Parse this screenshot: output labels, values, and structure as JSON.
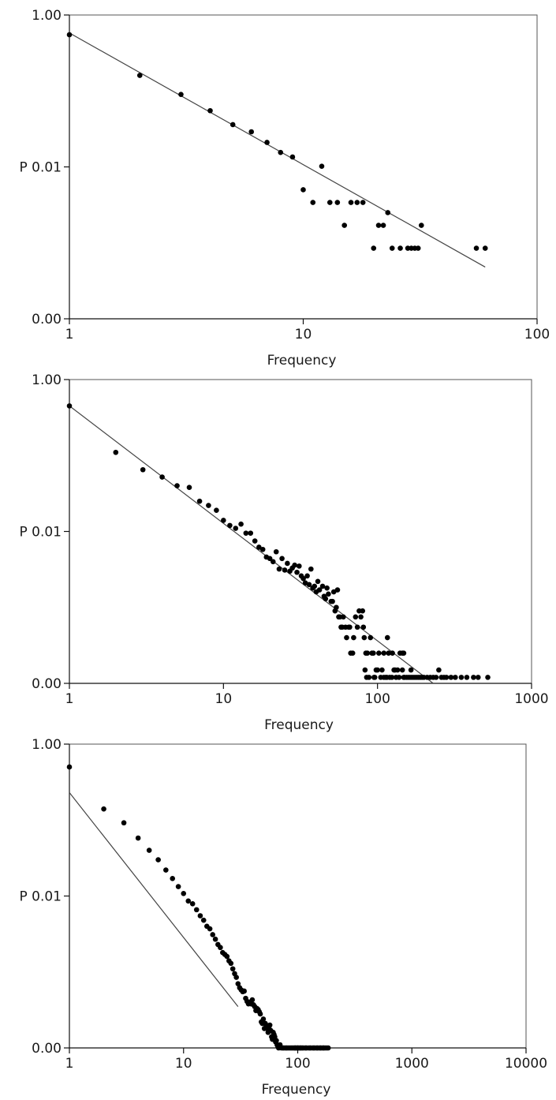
{
  "chart_data": [
    {
      "type": "scatter",
      "scale": {
        "x": "log",
        "y": "log"
      },
      "xlabel": "Frequency",
      "ylabel": "P",
      "xlim": [
        1,
        100
      ],
      "ylim": [
        0.0001,
        1.0
      ],
      "xticks": [
        {
          "value": 1,
          "label": "1"
        },
        {
          "value": 10,
          "label": "10"
        },
        {
          "value": 100,
          "label": "100"
        }
      ],
      "yticks": [
        {
          "value": 0.0001,
          "label": "0.00"
        },
        {
          "value": 0.01,
          "label": "P 0.01"
        },
        {
          "value": 1.0,
          "label": "1.00"
        }
      ],
      "grid": false,
      "points": [
        [
          1,
          0.55
        ],
        [
          2,
          0.16
        ],
        [
          3,
          0.09
        ],
        [
          4,
          0.055
        ],
        [
          5,
          0.036
        ],
        [
          6,
          0.029
        ],
        [
          7,
          0.021
        ],
        [
          8,
          0.0155
        ],
        [
          9,
          0.0135
        ],
        [
          10,
          0.005
        ],
        [
          11,
          0.0034
        ],
        [
          12,
          0.0102
        ],
        [
          13,
          0.0034
        ],
        [
          14,
          0.0034
        ],
        [
          15,
          0.0017
        ],
        [
          16,
          0.0034
        ],
        [
          17,
          0.0034
        ],
        [
          18,
          0.0034
        ],
        [
          20,
          0.00085
        ],
        [
          21,
          0.0017
        ],
        [
          22,
          0.0017
        ],
        [
          23,
          0.0025
        ],
        [
          24,
          0.00085
        ],
        [
          26,
          0.00085
        ],
        [
          28,
          0.00085
        ],
        [
          29,
          0.00085
        ],
        [
          30,
          0.00085
        ],
        [
          31,
          0.00085
        ],
        [
          32,
          0.0017
        ],
        [
          55,
          0.00085
        ],
        [
          60,
          0.00085
        ]
      ],
      "fit": {
        "x": [
          1,
          60
        ],
        "y": [
          0.58,
          0.00048
        ]
      }
    },
    {
      "type": "scatter",
      "scale": {
        "x": "log",
        "y": "log"
      },
      "xlabel": "Frequency",
      "ylabel": "P",
      "xlim": [
        1,
        1000
      ],
      "ylim": [
        0.0001,
        1.0
      ],
      "xticks": [
        {
          "value": 1,
          "label": "1"
        },
        {
          "value": 10,
          "label": "10"
        },
        {
          "value": 100,
          "label": "100"
        },
        {
          "value": 1000,
          "label": "1000"
        }
      ],
      "yticks": [
        {
          "value": 0.0001,
          "label": "0.00"
        },
        {
          "value": 0.01,
          "label": "P 0.01"
        },
        {
          "value": 1.0,
          "label": "1.00"
        }
      ],
      "grid": false,
      "points": [
        [
          1,
          0.45
        ],
        [
          2,
          0.11
        ],
        [
          3,
          0.065
        ],
        [
          4,
          0.052
        ],
        [
          5,
          0.04
        ],
        [
          6,
          0.038
        ],
        [
          7,
          0.025
        ],
        [
          8,
          0.022
        ],
        [
          9,
          0.019
        ],
        [
          10,
          0.014
        ],
        [
          11,
          0.012
        ],
        [
          12,
          0.011
        ],
        [
          13,
          0.0125
        ],
        [
          14,
          0.0095
        ],
        [
          15,
          0.0095
        ],
        [
          16,
          0.0075
        ],
        [
          17,
          0.0062
        ],
        [
          18,
          0.0058
        ],
        [
          19,
          0.0046
        ],
        [
          20,
          0.0044
        ],
        [
          21,
          0.004
        ],
        [
          22,
          0.0054
        ],
        [
          23,
          0.0032
        ],
        [
          24,
          0.0044
        ],
        [
          25,
          0.0031
        ],
        [
          26,
          0.0038
        ],
        [
          27,
          0.003
        ],
        [
          28,
          0.0033
        ],
        [
          29,
          0.0036
        ],
        [
          30,
          0.0029
        ],
        [
          31,
          0.0035
        ],
        [
          32,
          0.0026
        ],
        [
          33,
          0.0024
        ],
        [
          34,
          0.0021
        ],
        [
          35,
          0.0026
        ],
        [
          36,
          0.002
        ],
        [
          37,
          0.0032
        ],
        [
          38,
          0.0018
        ],
        [
          39,
          0.0019
        ],
        [
          40,
          0.0016
        ],
        [
          41,
          0.0022
        ],
        [
          42,
          0.0017
        ],
        [
          44,
          0.0019
        ],
        [
          45,
          0.0014
        ],
        [
          46,
          0.0013
        ],
        [
          47,
          0.0018
        ],
        [
          48,
          0.0015
        ],
        [
          50,
          0.0012
        ],
        [
          51,
          0.0012
        ],
        [
          52,
          0.0016
        ],
        [
          53,
          0.0009
        ],
        [
          54,
          0.001
        ],
        [
          55,
          0.0017
        ],
        [
          56,
          0.00075
        ],
        [
          57,
          0.00075
        ],
        [
          58,
          0.00055
        ],
        [
          59,
          0.00055
        ],
        [
          60,
          0.00075
        ],
        [
          62,
          0.00055
        ],
        [
          63,
          0.0004
        ],
        [
          65,
          0.00055
        ],
        [
          66,
          0.00055
        ],
        [
          67,
          0.00025
        ],
        [
          69,
          0.00025
        ],
        [
          70,
          0.0004
        ],
        [
          72,
          0.00075
        ],
        [
          74,
          0.00055
        ],
        [
          76,
          0.0009
        ],
        [
          78,
          0.00075
        ],
        [
          80,
          0.0009
        ],
        [
          81,
          0.00055
        ],
        [
          82,
          0.0004
        ],
        [
          83,
          0.00015
        ],
        [
          84,
          0.00025
        ],
        [
          86,
          0.00025
        ],
        [
          88,
          0.00012
        ],
        [
          90,
          0.0004
        ],
        [
          92,
          0.00025
        ],
        [
          94,
          0.00025
        ],
        [
          96,
          0.00012
        ],
        [
          98,
          0.00015
        ],
        [
          100,
          0.00015
        ],
        [
          102,
          0.00025
        ],
        [
          105,
          0.00012
        ],
        [
          107,
          0.00015
        ],
        [
          110,
          0.00012
        ],
        [
          113,
          0.00012
        ],
        [
          116,
          0.0004
        ],
        [
          120,
          0.00012
        ],
        [
          125,
          0.00025
        ],
        [
          130,
          0.00015
        ],
        [
          135,
          0.00015
        ],
        [
          140,
          0.00025
        ],
        [
          145,
          0.00015
        ],
        [
          150,
          0.00012
        ],
        [
          155,
          0.00012
        ],
        [
          160,
          0.00012
        ],
        [
          165,
          0.00012
        ],
        [
          170,
          0.00012
        ],
        [
          180,
          0.00012
        ],
        [
          190,
          0.00012
        ],
        [
          200,
          0.00012
        ],
        [
          210,
          0.00012
        ],
        [
          220,
          0.00012
        ],
        [
          240,
          0.00012
        ],
        [
          250,
          0.00015
        ],
        [
          260,
          0.00012
        ],
        [
          280,
          0.00012
        ],
        [
          300,
          0.00012
        ],
        [
          320,
          0.00012
        ],
        [
          350,
          0.00012
        ],
        [
          380,
          0.00012
        ],
        [
          420,
          0.00012
        ],
        [
          450,
          0.00012
        ],
        [
          520,
          0.00012
        ],
        [
          85,
          0.00012
        ],
        [
          95,
          0.00012
        ],
        [
          115,
          0.00012
        ],
        [
          124,
          0.00012
        ],
        [
          132,
          0.00012
        ],
        [
          138,
          0.00012
        ],
        [
          148,
          0.00012
        ],
        [
          175,
          0.00012
        ],
        [
          185,
          0.00012
        ],
        [
          195,
          0.00012
        ],
        [
          230,
          0.00012
        ],
        [
          270,
          0.00012
        ],
        [
          110,
          0.00025
        ],
        [
          118,
          0.00025
        ],
        [
          128,
          0.00015
        ],
        [
          148,
          0.00025
        ],
        [
          165,
          0.00015
        ],
        [
          145,
          0.00025
        ]
      ],
      "fit": {
        "x": [
          1,
          230
        ],
        "y": [
          0.45,
          0.0001
        ]
      }
    },
    {
      "type": "scatter",
      "scale": {
        "x": "log",
        "y": "log"
      },
      "xlabel": "Frequency",
      "ylabel": "P",
      "xlim": [
        1,
        10000
      ],
      "ylim": [
        0.0001,
        1.0
      ],
      "xticks": [
        {
          "value": 1,
          "label": "1"
        },
        {
          "value": 10,
          "label": "10"
        },
        {
          "value": 100,
          "label": "100"
        },
        {
          "value": 1000,
          "label": "1000"
        },
        {
          "value": 10000,
          "label": "10000"
        }
      ],
      "yticks": [
        {
          "value": 0.0001,
          "label": "0.00"
        },
        {
          "value": 0.01,
          "label": "P 0.01"
        },
        {
          "value": 1.0,
          "label": "1.00"
        }
      ],
      "grid": false,
      "points": [
        [
          1,
          0.5
        ],
        [
          2,
          0.14
        ],
        [
          3,
          0.092
        ],
        [
          4,
          0.058
        ],
        [
          5,
          0.04
        ],
        [
          6,
          0.03
        ],
        [
          7,
          0.022
        ],
        [
          8,
          0.017
        ],
        [
          9,
          0.0133
        ],
        [
          10,
          0.0108
        ],
        [
          11,
          0.0086
        ],
        [
          12,
          0.0079
        ],
        [
          13,
          0.0066
        ],
        [
          14,
          0.0055
        ],
        [
          15,
          0.0048
        ],
        [
          16,
          0.004
        ],
        [
          17,
          0.0037
        ],
        [
          18,
          0.0031
        ],
        [
          19,
          0.0027
        ],
        [
          20,
          0.0023
        ],
        [
          21,
          0.0021
        ],
        [
          22,
          0.0018
        ],
        [
          23,
          0.0017
        ],
        [
          24,
          0.0016
        ],
        [
          25,
          0.0014
        ],
        [
          26,
          0.0013
        ],
        [
          27,
          0.0011
        ],
        [
          28,
          0.00095
        ],
        [
          29,
          0.00085
        ],
        [
          30,
          0.0007
        ],
        [
          31,
          0.00062
        ],
        [
          32,
          0.00058
        ],
        [
          33,
          0.00055
        ],
        [
          34,
          0.00056
        ],
        [
          35,
          0.00045
        ],
        [
          36,
          0.00041
        ],
        [
          37,
          0.00038
        ],
        [
          38,
          0.0004
        ],
        [
          39,
          0.00038
        ],
        [
          40,
          0.00043
        ],
        [
          41,
          0.00037
        ],
        [
          42,
          0.00035
        ],
        [
          43,
          0.00031
        ],
        [
          44,
          0.00033
        ],
        [
          45,
          0.00032
        ],
        [
          46,
          0.0003
        ],
        [
          47,
          0.00028
        ],
        [
          48,
          0.00022
        ],
        [
          49,
          0.00021
        ],
        [
          50,
          0.00024
        ],
        [
          51,
          0.00018
        ],
        [
          52,
          0.00021
        ],
        [
          53,
          0.0002
        ],
        [
          54,
          0.00018
        ],
        [
          55,
          0.00016
        ],
        [
          56,
          0.00019
        ],
        [
          57,
          0.0002
        ],
        [
          58,
          0.00017
        ],
        [
          59,
          0.00014
        ],
        [
          60,
          0.00013
        ],
        [
          61,
          0.00016
        ],
        [
          62,
          0.00015
        ],
        [
          63,
          0.00014
        ],
        [
          64,
          0.00012
        ],
        [
          65,
          0.000125
        ],
        [
          66,
          0.00011
        ],
        [
          67,
          0.000105
        ],
        [
          68,
          9.5e-05
        ],
        [
          70,
          0.00011
        ],
        [
          72,
          9e-05
        ],
        [
          74,
          8.5e-05
        ],
        [
          75,
          7.5e-05
        ],
        [
          77,
          9e-05
        ],
        [
          79,
          8e-05
        ],
        [
          80,
          7e-05
        ],
        [
          82,
          6e-05
        ],
        [
          84,
          7.5e-05
        ],
        [
          86,
          5e-05
        ],
        [
          88,
          6.5e-05
        ],
        [
          90,
          5.5e-05
        ],
        [
          92,
          4e-05
        ],
        [
          94,
          5.5e-05
        ],
        [
          96,
          4.8e-05
        ],
        [
          98,
          4.2e-05
        ],
        [
          100,
          4e-05
        ],
        [
          102,
          5e-05
        ],
        [
          105,
          3.5e-05
        ],
        [
          108,
          4.2e-05
        ],
        [
          112,
          3e-05
        ],
        [
          116,
          3.4e-05
        ],
        [
          120,
          2.8e-05
        ],
        [
          125,
          2.6e-05
        ],
        [
          130,
          2.4e-05
        ],
        [
          135,
          2.6e-05
        ],
        [
          140,
          2.2e-05
        ],
        [
          145,
          2e-05
        ],
        [
          150,
          2.4e-05
        ],
        [
          155,
          2.2e-05
        ],
        [
          160,
          2.8e-05
        ],
        [
          165,
          2e-05
        ],
        [
          170,
          2.2e-05
        ],
        [
          175,
          2e-05
        ],
        [
          180,
          1.8e-05
        ],
        [
          185,
          1.8e-05
        ],
        [
          110,
          2.2e-05
        ],
        [
          118,
          2e-05
        ],
        [
          128,
          1.8e-05
        ],
        [
          138,
          1.8e-05
        ],
        [
          148,
          1.8e-05
        ],
        [
          158,
          1.8e-05
        ],
        [
          168,
          1.8e-05
        ],
        [
          95,
          2e-05
        ],
        [
          100,
          1.8e-05
        ],
        [
          105,
          1.8e-05
        ]
      ],
      "fit": {
        "x": [
          1,
          30
        ],
        "y": [
          0.23,
          0.00035
        ]
      }
    }
  ]
}
